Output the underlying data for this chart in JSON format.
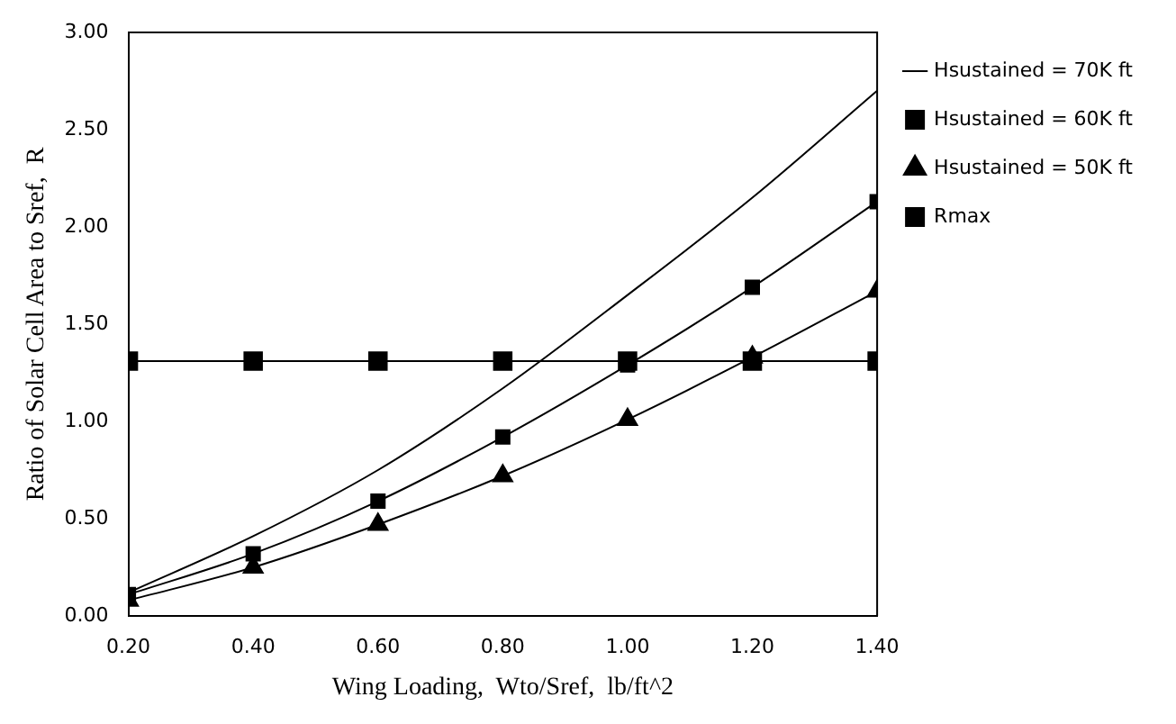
{
  "chart_data": {
    "type": "line",
    "xlabel": "Wing Loading,  Wto/Sref,  lb/ft^2",
    "ylabel": "Ratio of Solar Cell Area to Sref,  R",
    "x": [
      0.2,
      0.4,
      0.6,
      0.8,
      1.0,
      1.2,
      1.4
    ],
    "series": [
      {
        "name": "Hsustained = 70K ft",
        "color": "#000000",
        "marker": "none",
        "values": [
          0.12,
          0.41,
          0.75,
          1.17,
          1.65,
          2.15,
          2.7
        ]
      },
      {
        "name": "Hsustained = 60K ft",
        "color": "#000000",
        "marker": "square",
        "values": [
          0.11,
          0.32,
          0.59,
          0.92,
          1.29,
          1.69,
          2.13
        ]
      },
      {
        "name": "Hsustained = 50K ft",
        "color": "#000000",
        "marker": "triangle",
        "values": [
          0.08,
          0.25,
          0.47,
          0.72,
          1.01,
          1.33,
          1.67
        ]
      },
      {
        "name": "Rmax",
        "color": "#000000",
        "marker": "square",
        "values": [
          1.31,
          1.31,
          1.31,
          1.31,
          1.31,
          1.31,
          1.31
        ]
      }
    ],
    "xlim": [
      0.2,
      1.4
    ],
    "xticks": [
      {
        "value": 0.2,
        "label": "0.20"
      },
      {
        "value": 0.4,
        "label": "0.40"
      },
      {
        "value": 0.6,
        "label": "0.60"
      },
      {
        "value": 0.8,
        "label": "0.80"
      },
      {
        "value": 1.0,
        "label": "1.00"
      },
      {
        "value": 1.2,
        "label": "1.20"
      },
      {
        "value": 1.4,
        "label": "1.40"
      }
    ],
    "ylim": [
      0,
      3
    ],
    "yticks": [
      {
        "value": 0,
        "label": "0.00"
      },
      {
        "value": 0.5,
        "label": "0.50"
      },
      {
        "value": 1,
        "label": "1.00"
      },
      {
        "value": 1.5,
        "label": "1.50"
      },
      {
        "value": 2,
        "label": "2.00"
      },
      {
        "value": 2.5,
        "label": "2.50"
      },
      {
        "value": 3,
        "label": "3.00"
      }
    ],
    "grid": false,
    "legend": "right",
    "line_style": "solid"
  }
}
